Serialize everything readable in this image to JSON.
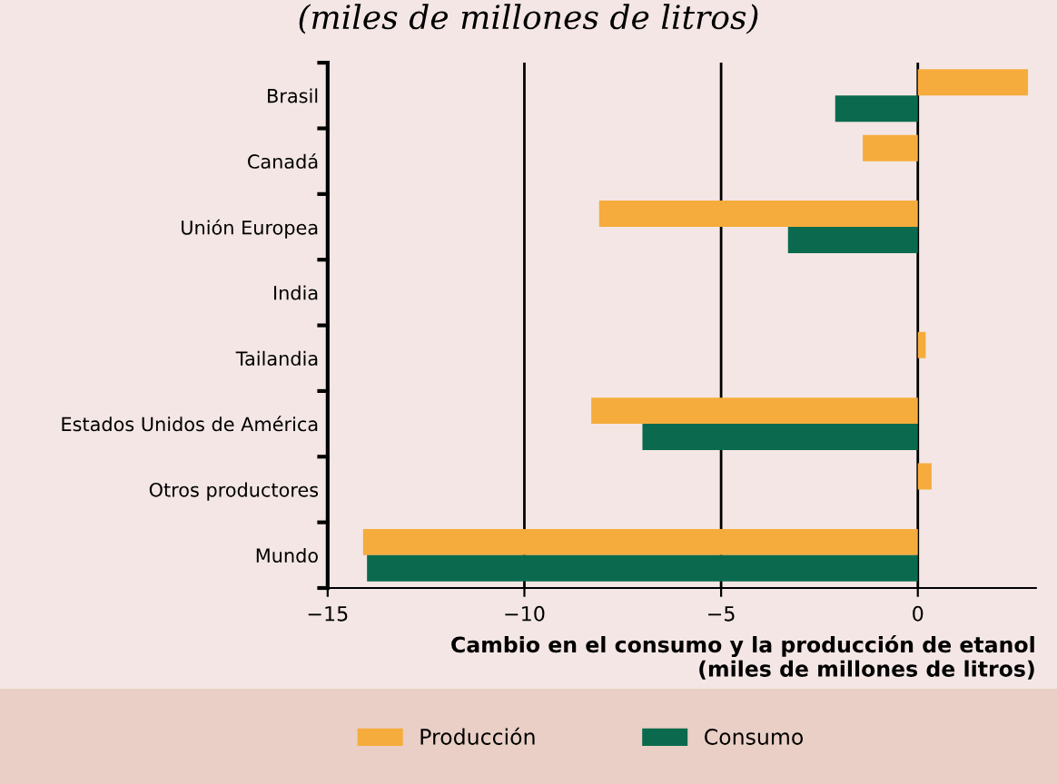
{
  "chart_data": {
    "type": "bar",
    "orientation": "horizontal",
    "title": "(miles de millones de litros)",
    "categories": [
      "Brasil",
      "Canadá",
      "Unión Europea",
      "India",
      "Tailandia",
      "Estados Unidos de América",
      "Otros productores",
      "Mundo"
    ],
    "series": [
      {
        "name": "Producción",
        "color": "#f5ac3c",
        "values": [
          2.8,
          -1.4,
          -8.1,
          0,
          0.2,
          -8.3,
          0.35,
          -14.1
        ]
      },
      {
        "name": "Consumo",
        "color": "#0b6a4e",
        "values": [
          -2.1,
          null,
          -3.3,
          null,
          null,
          -7.0,
          null,
          -14.0
        ]
      }
    ],
    "xlim": [
      -15,
      3
    ],
    "xticks": [
      {
        "value": -15,
        "label": "−15"
      },
      {
        "value": -10,
        "label": "−10"
      },
      {
        "value": -5,
        "label": "−5"
      },
      0
    ],
    "xlabel": "Cambio en el consumo y la producción de etanol\n(miles de millones de litros)",
    "grid": "x",
    "legend": "bottom"
  }
}
